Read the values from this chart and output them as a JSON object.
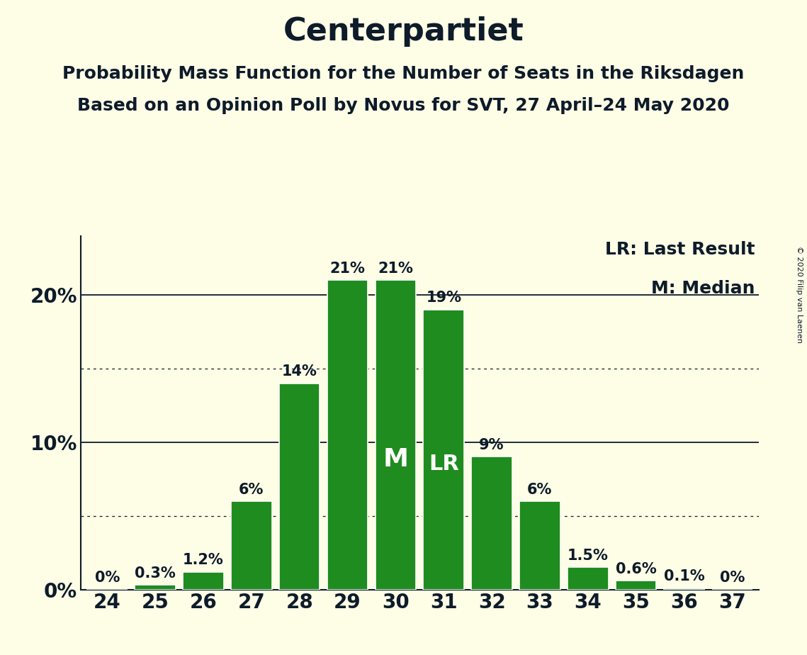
{
  "title": "Centerpartiet",
  "subtitle1": "Probability Mass Function for the Number of Seats in the Riksdagen",
  "subtitle2": "Based on an Opinion Poll by Novus for SVT, 27 April–24 May 2020",
  "copyright": "© 2020 Filip van Laenen",
  "seats": [
    24,
    25,
    26,
    27,
    28,
    29,
    30,
    31,
    32,
    33,
    34,
    35,
    36,
    37
  ],
  "probabilities": [
    0.0,
    0.3,
    1.2,
    6.0,
    14.0,
    21.0,
    21.0,
    19.0,
    9.0,
    6.0,
    1.5,
    0.6,
    0.1,
    0.0
  ],
  "bar_color": "#1e8c1e",
  "background_color": "#fefde6",
  "text_color": "#0d1b2a",
  "median_seat": 30,
  "lr_seat": 31,
  "ylim_max": 24,
  "yticks": [
    0,
    10,
    20
  ],
  "dotted_lines": [
    5,
    15
  ],
  "title_fontsize": 32,
  "subtitle_fontsize": 18,
  "tick_fontsize": 20,
  "bar_label_fontsize": 15,
  "annotation_fontsize_M": 26,
  "annotation_fontsize_LR": 22,
  "legend_fontsize": 18,
  "copyright_fontsize": 8,
  "bar_width": 0.85,
  "xlim": [
    23.45,
    37.55
  ]
}
